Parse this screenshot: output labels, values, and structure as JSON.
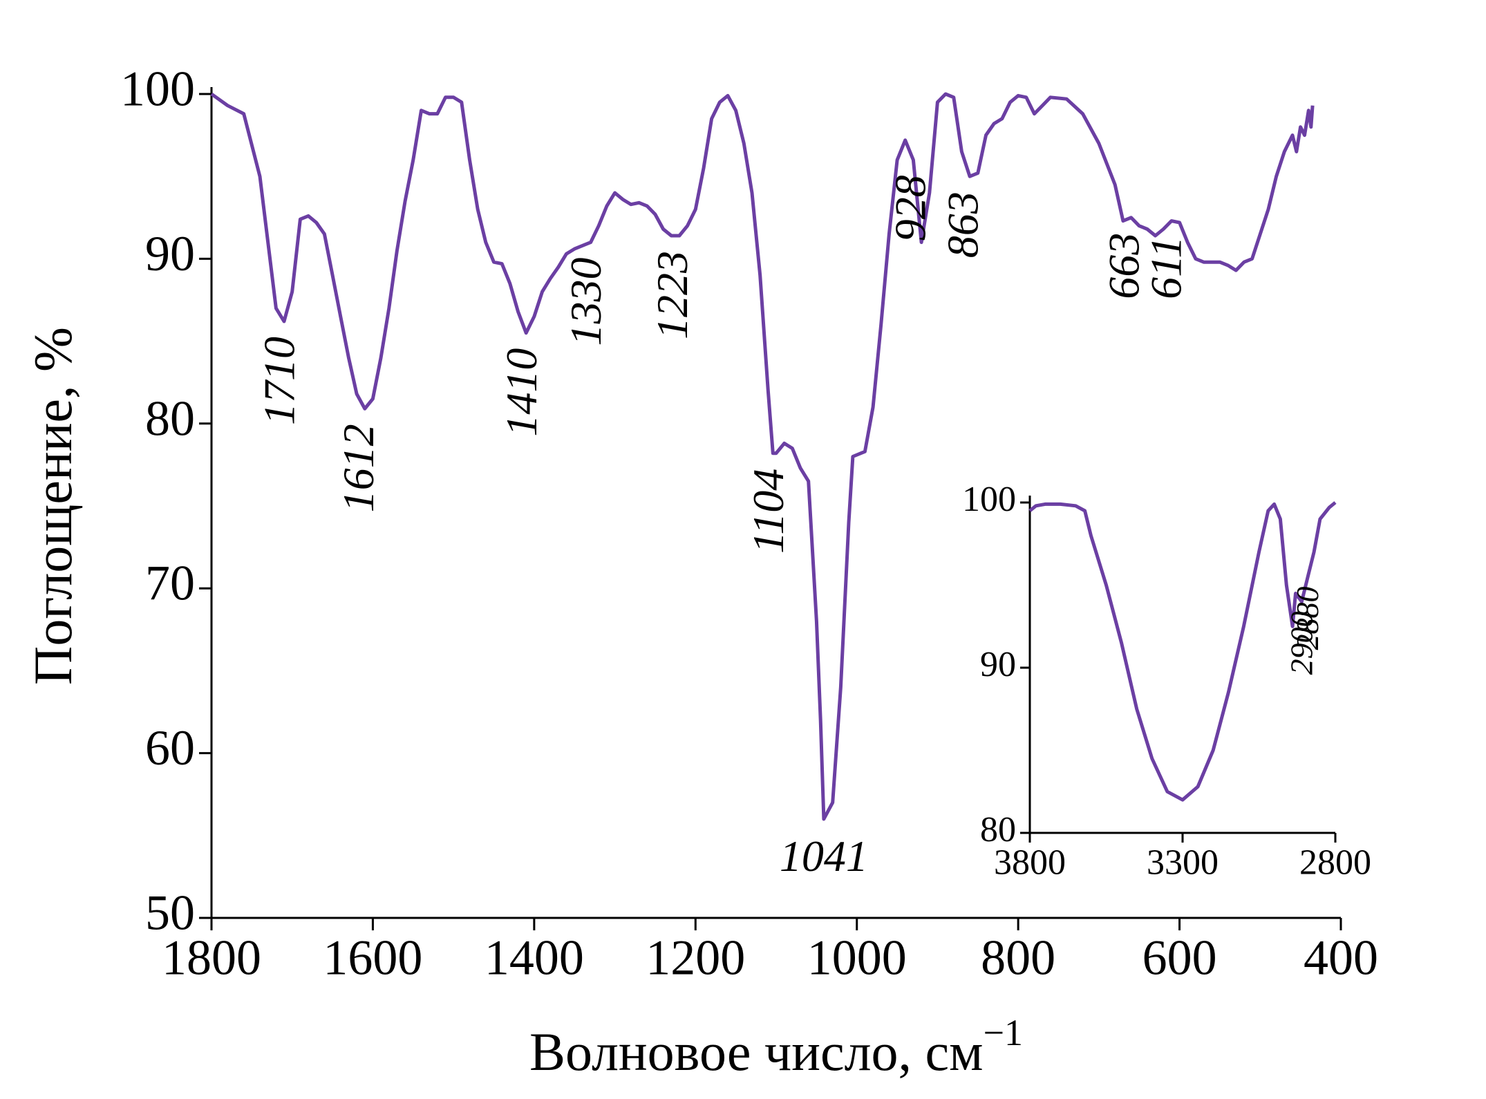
{
  "chart_data": [
    {
      "type": "line",
      "ylabel": "Поглощение, %",
      "xlabel": "Волновое число, см",
      "xlabel_superscript": "−1",
      "xlim": [
        1800,
        400
      ],
      "ylim": [
        50,
        100
      ],
      "xticks": [
        1800,
        1600,
        1400,
        1200,
        1000,
        800,
        600,
        400
      ],
      "yticks": [
        50,
        60,
        70,
        80,
        90,
        100
      ],
      "x": [
        1800,
        1780,
        1760,
        1740,
        1730,
        1720,
        1710,
        1700,
        1690,
        1680,
        1670,
        1660,
        1650,
        1640,
        1630,
        1620,
        1610,
        1600,
        1590,
        1580,
        1570,
        1560,
        1550,
        1540,
        1530,
        1520,
        1510,
        1500,
        1490,
        1480,
        1470,
        1460,
        1450,
        1440,
        1430,
        1420,
        1410,
        1400,
        1390,
        1380,
        1370,
        1360,
        1350,
        1340,
        1330,
        1320,
        1310,
        1300,
        1290,
        1280,
        1270,
        1260,
        1250,
        1240,
        1230,
        1220,
        1210,
        1200,
        1190,
        1180,
        1170,
        1160,
        1150,
        1140,
        1130,
        1120,
        1110,
        1104,
        1100,
        1090,
        1080,
        1070,
        1060,
        1050,
        1045,
        1041,
        1030,
        1020,
        1010,
        1005,
        990,
        980,
        970,
        960,
        950,
        940,
        930,
        920,
        910,
        900,
        890,
        880,
        870,
        860,
        850,
        840,
        830,
        820,
        810,
        800,
        790,
        780,
        770,
        760,
        740,
        720,
        700,
        680,
        670,
        660,
        650,
        640,
        630,
        620,
        610,
        600,
        590,
        580,
        570,
        560,
        550,
        540,
        530,
        520,
        510,
        500,
        490,
        480,
        470,
        460,
        455,
        450,
        445,
        440,
        437,
        435
      ],
      "series": [
        {
          "color": "#6b3fa3",
          "values": [
            100,
            99.3,
            98.8,
            95,
            91,
            87,
            86.2,
            88,
            92.4,
            92.6,
            92.2,
            91.5,
            89,
            86.5,
            84,
            81.8,
            80.9,
            81.5,
            84,
            87,
            90.5,
            93.5,
            96,
            99,
            98.8,
            98.8,
            99.8,
            99.8,
            99.5,
            96,
            93,
            91,
            89.8,
            89.7,
            88.5,
            86.8,
            85.5,
            86.5,
            88,
            88.8,
            89.5,
            90.3,
            90.6,
            90.8,
            91,
            92,
            93.2,
            94,
            93.6,
            93.3,
            93.4,
            93.2,
            92.7,
            91.8,
            91.4,
            91.4,
            92,
            93,
            95.5,
            98.5,
            99.5,
            99.9,
            99,
            97,
            94,
            89,
            82,
            78.2,
            78.2,
            78.8,
            78.5,
            77.3,
            76.5,
            68,
            62,
            56,
            57,
            64,
            74,
            78,
            78.3,
            81,
            86,
            91.5,
            96,
            97.2,
            96,
            91,
            94,
            99.5,
            100,
            99.8,
            96.5,
            95,
            95.2,
            97.5,
            98.2,
            98.5,
            99.5,
            99.9,
            99.8,
            98.8,
            99.3,
            99.8,
            99.7,
            98.8,
            97,
            94.5,
            92.3,
            92.5,
            92,
            91.8,
            91.4,
            91.8,
            92.3,
            92.2,
            91,
            90,
            89.8,
            89.8,
            89.8,
            89.6,
            89.3,
            89.8,
            90,
            91.5,
            93,
            95,
            96.5,
            97.5,
            96.5,
            98,
            97.5,
            99,
            98,
            99.3
          ]
        }
      ],
      "annotations": [
        {
          "text": "1710"
        },
        {
          "text": "1612"
        },
        {
          "text": "1410"
        },
        {
          "text": "1330"
        },
        {
          "text": "1223"
        },
        {
          "text": "1104"
        },
        {
          "text": "1041",
          "horizontal": true
        },
        {
          "text": "928"
        },
        {
          "text": "863"
        },
        {
          "text": "663"
        },
        {
          "text": "611"
        }
      ]
    },
    {
      "type": "line",
      "xlim": [
        3800,
        2800
      ],
      "ylim": [
        80,
        100
      ],
      "xticks": [
        3800,
        3300,
        2800
      ],
      "yticks": [
        80,
        90,
        100
      ],
      "x": [
        3800,
        3780,
        3750,
        3700,
        3650,
        3620,
        3600,
        3550,
        3500,
        3450,
        3400,
        3350,
        3300,
        3250,
        3200,
        3150,
        3100,
        3050,
        3020,
        3000,
        2980,
        2960,
        2940,
        2930,
        2910,
        2890,
        2870,
        2850,
        2820,
        2800
      ],
      "series": [
        {
          "color": "#6b3fa3",
          "values": [
            99.5,
            99.8,
            99.9,
            99.9,
            99.8,
            99.5,
            98,
            95,
            91.5,
            87.5,
            84.5,
            82.5,
            82,
            82.8,
            85,
            88.5,
            92.5,
            97,
            99.5,
            99.9,
            99,
            95,
            92.5,
            94.5,
            94,
            95.5,
            97,
            99,
            99.7,
            100
          ]
        }
      ],
      "annotations": [
        {
          "text": "2900"
        },
        {
          "text": "2880"
        }
      ]
    }
  ]
}
